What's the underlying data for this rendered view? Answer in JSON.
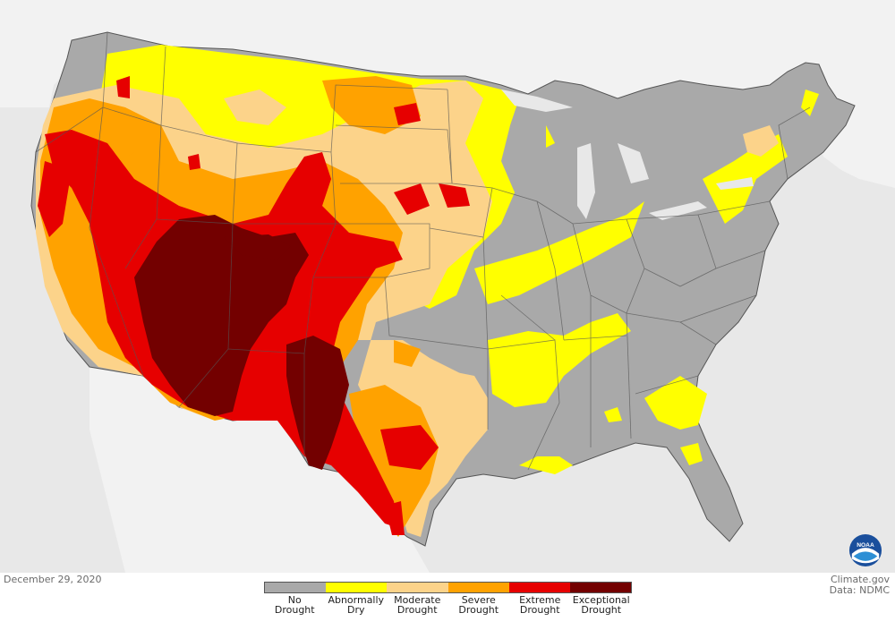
{
  "map": {
    "date": "December 29, 2020",
    "credit": {
      "source": "Climate.gov",
      "data": "Data: NDMC"
    },
    "logo": {
      "text": "NOAA"
    },
    "colors": {
      "background": "#e8e8e8",
      "land_outside": "#f2f2f2",
      "no_drought": "#a9a9a9",
      "abnormally_dry": "#ffff00",
      "moderate": "#fcd38a",
      "severe": "#ffa200",
      "extreme": "#e60000",
      "exceptional": "#730000",
      "borders": "#555555"
    },
    "legend": [
      {
        "line1": "No",
        "line2": "Drought",
        "color": "#a9a9a9"
      },
      {
        "line1": "Abnormally",
        "line2": "Dry",
        "color": "#ffff00"
      },
      {
        "line1": "Moderate",
        "line2": "Drought",
        "color": "#fcd38a"
      },
      {
        "line1": "Severe",
        "line2": "Drought",
        "color": "#ffa200"
      },
      {
        "line1": "Extreme",
        "line2": "Drought",
        "color": "#e60000"
      },
      {
        "line1": "Exceptional",
        "line2": "Drought",
        "color": "#730000"
      }
    ]
  }
}
